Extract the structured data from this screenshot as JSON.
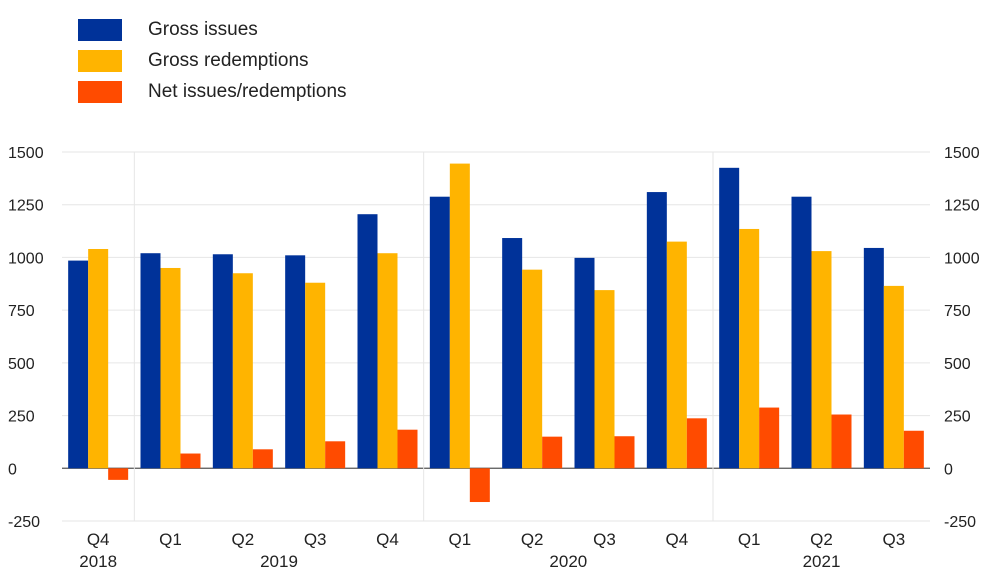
{
  "chart_data": {
    "type": "bar",
    "title": "",
    "xlabel": "",
    "ylabel": "",
    "ylim": [
      -250,
      1500
    ],
    "yticks": [
      -250,
      0,
      250,
      500,
      750,
      1000,
      1250,
      1500
    ],
    "y_axes": "left and right",
    "grid": "horizontal and vertical (year boundaries)",
    "legend_position": "top-left",
    "categories": [
      "Q4",
      "Q1",
      "Q2",
      "Q3",
      "Q4",
      "Q1",
      "Q2",
      "Q3",
      "Q4",
      "Q1",
      "Q2",
      "Q3"
    ],
    "years": [
      {
        "label": "2018",
        "from": 0,
        "to": 0
      },
      {
        "label": "2019",
        "from": 1,
        "to": 4
      },
      {
        "label": "2020",
        "from": 5,
        "to": 8
      },
      {
        "label": "2021",
        "from": 9,
        "to": 11
      }
    ],
    "series": [
      {
        "name": "Gross issues",
        "color": "#003299",
        "values": [
          985,
          1020,
          1015,
          1010,
          1205,
          1288,
          1092,
          998,
          1310,
          1425,
          1288,
          1045
        ]
      },
      {
        "name": "Gross redemptions",
        "color": "#ffb400",
        "values": [
          1040,
          950,
          925,
          880,
          1020,
          1445,
          942,
          845,
          1075,
          1135,
          1030,
          865
        ]
      },
      {
        "name": "Net issues/redemptions",
        "color": "#ff4b00",
        "values": [
          -55,
          70,
          90,
          128,
          183,
          -160,
          150,
          152,
          237,
          288,
          255,
          178
        ]
      }
    ]
  }
}
